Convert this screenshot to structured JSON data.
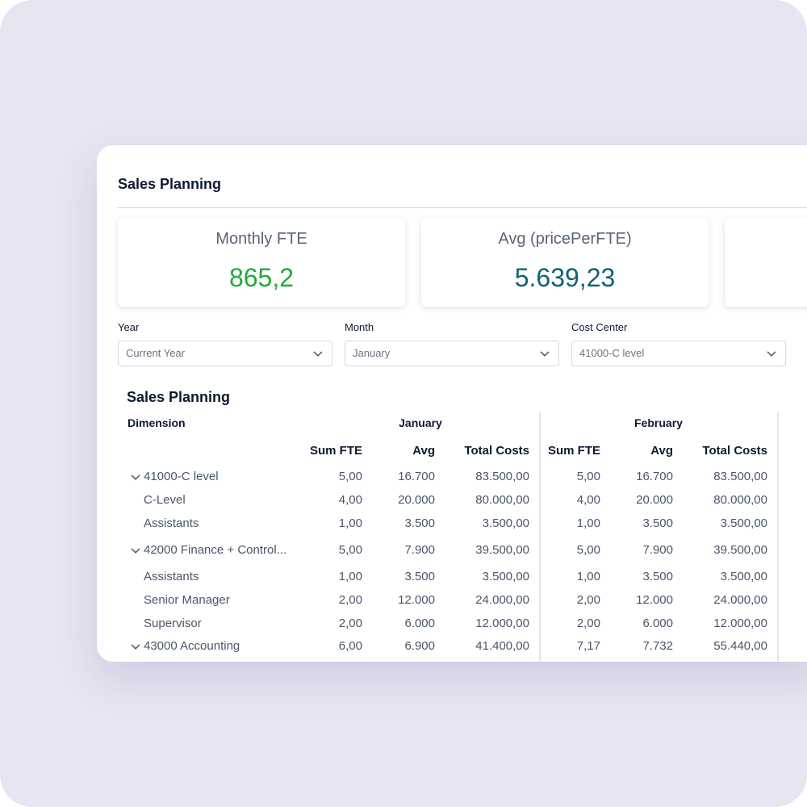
{
  "header": {
    "title": "Sales Planning"
  },
  "kpis": [
    {
      "label": "Monthly FTE",
      "value": "865,2",
      "color": "#1fab3c"
    },
    {
      "label": "Avg (pricePerFTE)",
      "value": "5.639,23",
      "color": "#0f6178"
    }
  ],
  "filters": [
    {
      "label": "Year",
      "value": "Current Year"
    },
    {
      "label": "Month",
      "value": "January"
    },
    {
      "label": "Cost Center",
      "value": "41000-C level"
    }
  ],
  "table": {
    "title": "Sales Planning",
    "dimension": "Dimension",
    "months": [
      "January",
      "February"
    ],
    "columns": [
      "Sum FTE",
      "Avg",
      "Total Costs",
      "Sum FTE",
      "Avg",
      "Total Costs"
    ],
    "rows": [
      {
        "label": "41000-C level",
        "group": true,
        "cells": [
          "5,00",
          "16.700",
          "83.500,00",
          "5,00",
          "16.700",
          "83.500,00"
        ]
      },
      {
        "label": "C-Level",
        "group": false,
        "cells": [
          "4,00",
          "20.000",
          "80.000,00",
          "4,00",
          "20.000",
          "80.000,00"
        ]
      },
      {
        "label": "Assistants",
        "group": false,
        "cells": [
          "1,00",
          "3.500",
          "3.500,00",
          "1,00",
          "3.500",
          "3.500,00"
        ]
      },
      {
        "label": "42000 Finance + Control...",
        "group": true,
        "cells": [
          "5,00",
          "7.900",
          "39.500,00",
          "5,00",
          "7.900",
          "39.500,00"
        ]
      },
      {
        "label": "Assistants",
        "group": false,
        "cells": [
          "1,00",
          "3.500",
          "3.500,00",
          "1,00",
          "3.500",
          "3.500,00"
        ]
      },
      {
        "label": "Senior Manager",
        "group": false,
        "cells": [
          "2,00",
          "12.000",
          "24.000,00",
          "2,00",
          "12.000",
          "24.000,00"
        ]
      },
      {
        "label": "Supervisor",
        "group": false,
        "cells": [
          "2,00",
          "6.000",
          "12.000,00",
          "2,00",
          "6.000",
          "12.000,00"
        ]
      },
      {
        "label": "43000 Accounting",
        "group": true,
        "cells": [
          "6,00",
          "6.900",
          "41.400,00",
          "7,17",
          "7.732",
          "55.440,00"
        ]
      }
    ]
  }
}
